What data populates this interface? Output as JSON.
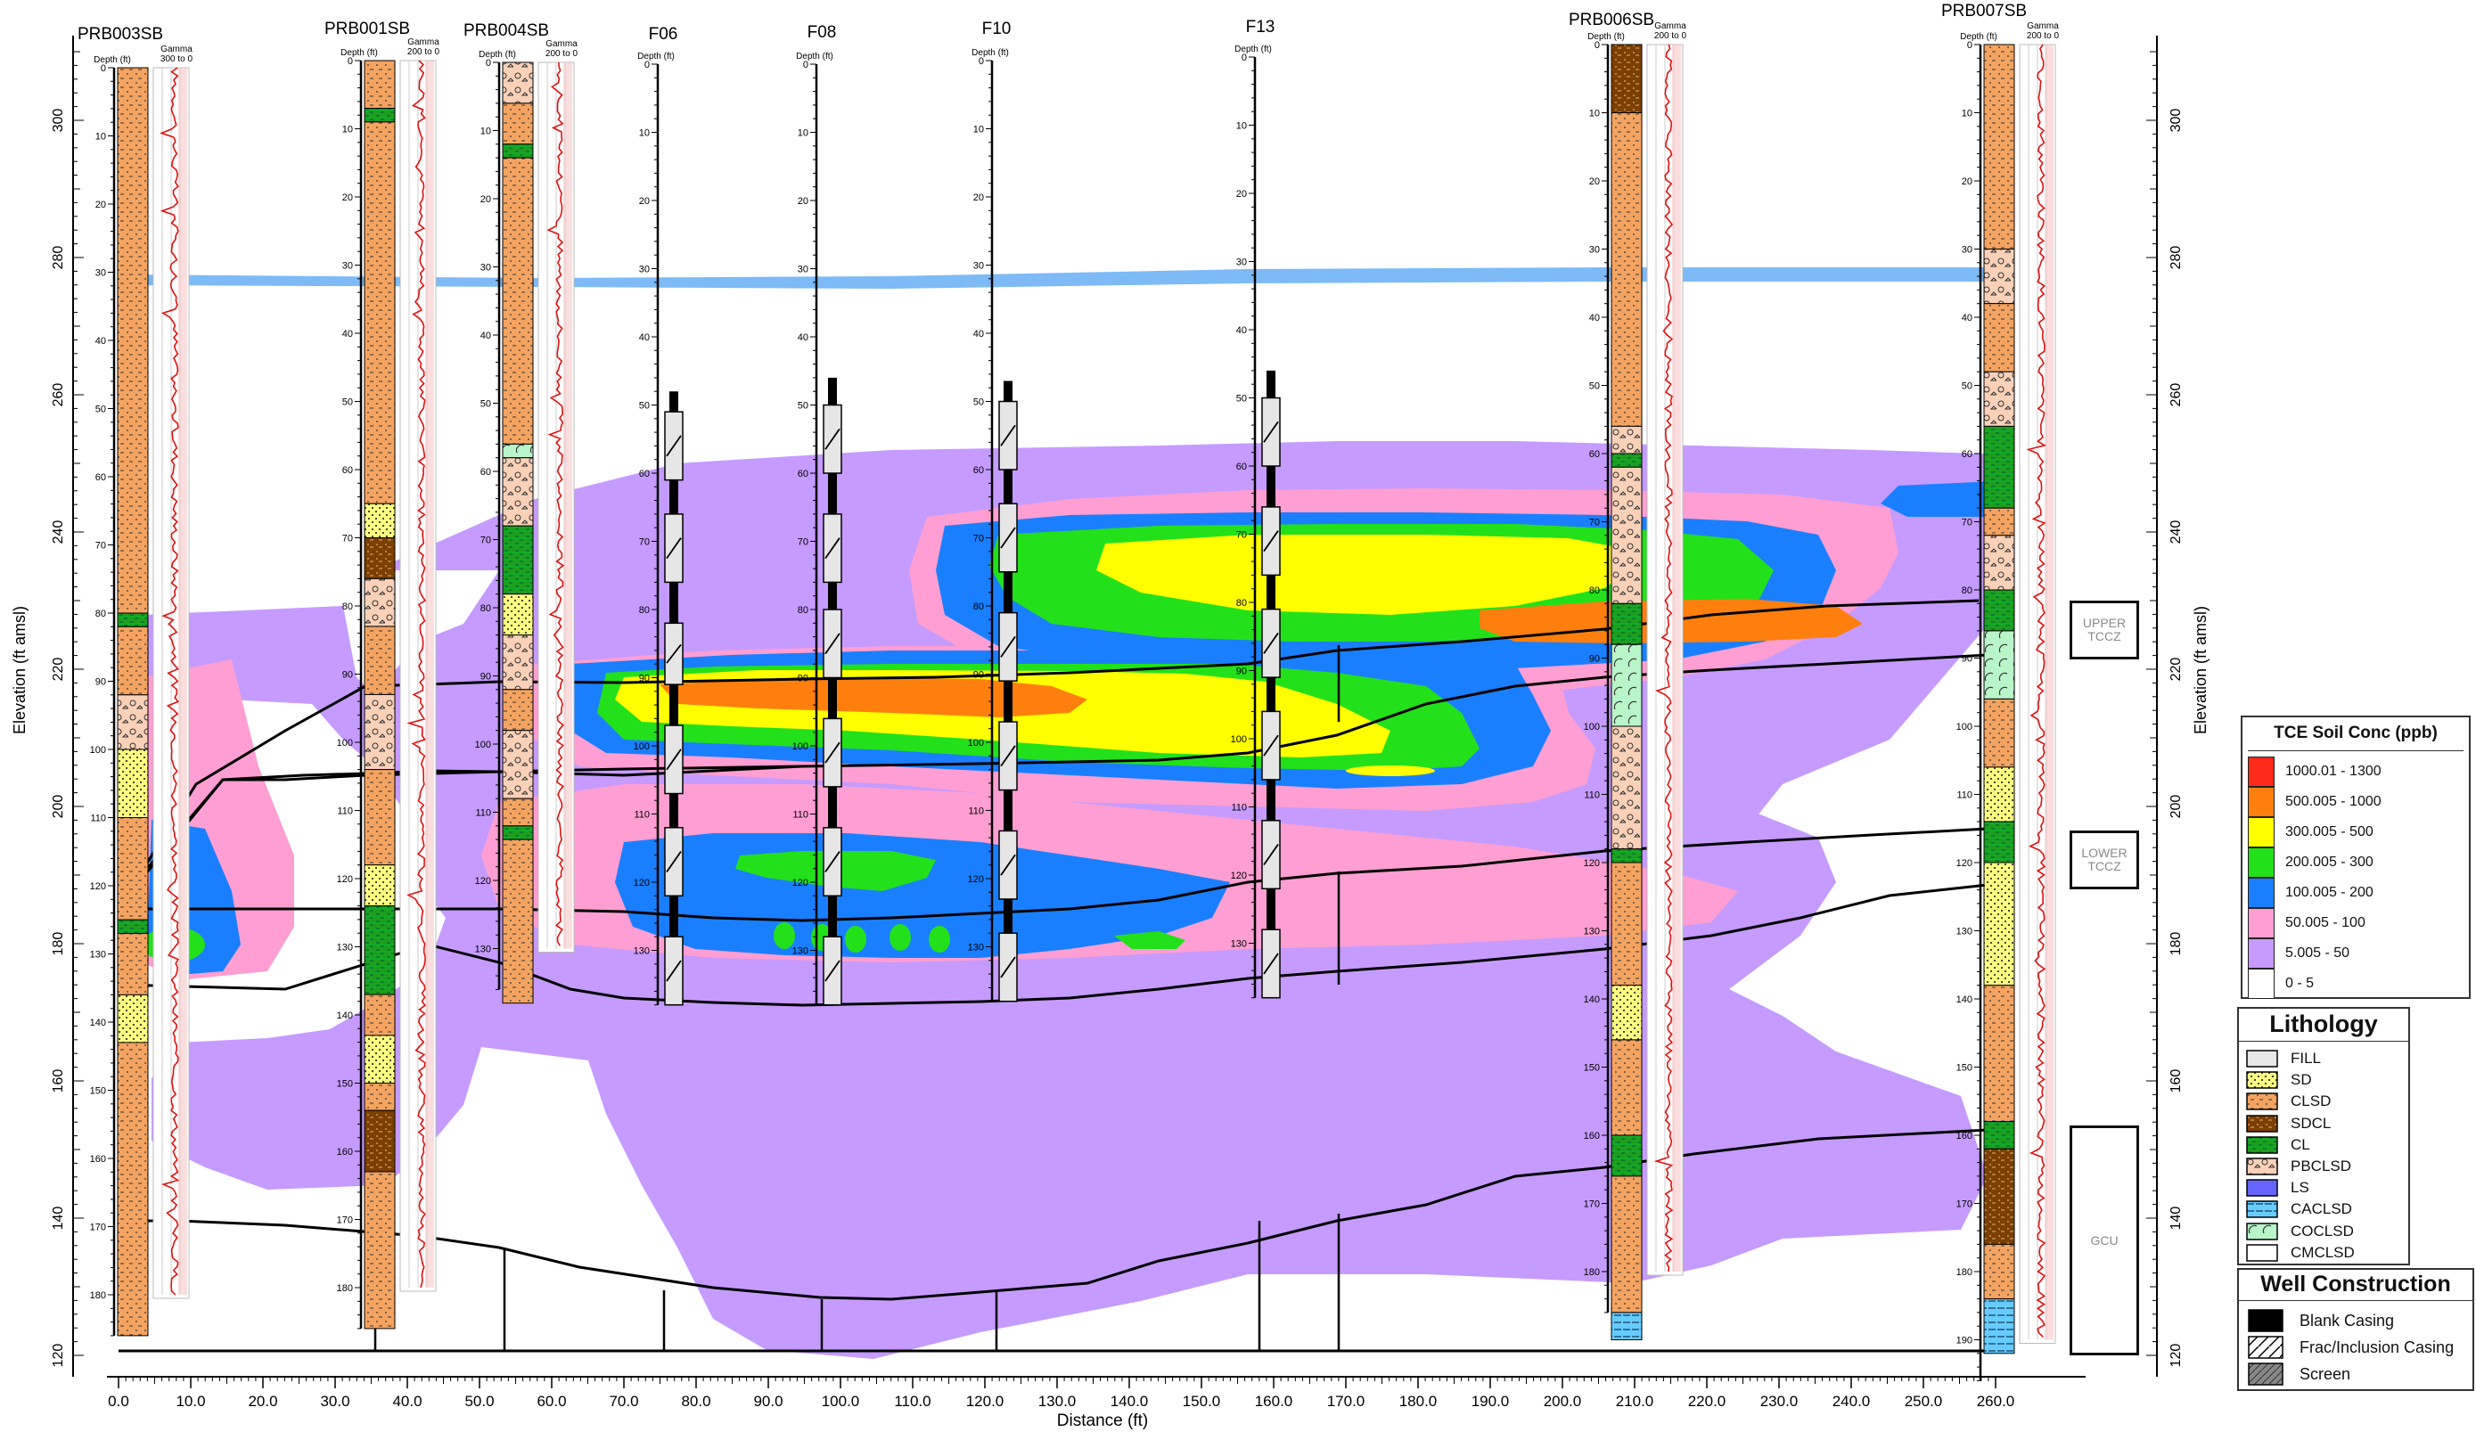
{
  "chart_data": {
    "type": "diagram",
    "xlabel": "Distance (ft)",
    "ylabel_left": "Elevation (ft amsl)",
    "ylabel_right": "Elevation (ft amsl)",
    "x_ticks": [
      "0.0",
      "10.0",
      "20.0",
      "30.0",
      "40.0",
      "50.0",
      "60.0",
      "70.0",
      "80.0",
      "90.0",
      "100.0",
      "110.0",
      "120.0",
      "130.0",
      "140.0",
      "150.0",
      "160.0",
      "170.0",
      "180.0",
      "190.0",
      "200.0",
      "210.0",
      "220.0",
      "230.0",
      "240.0",
      "250.0",
      "260.0"
    ],
    "elev_ticks": [
      "300",
      "280",
      "260",
      "240",
      "220",
      "200",
      "180",
      "160",
      "140",
      "120"
    ],
    "depth_header": "Depth (ft)",
    "boreholes": [
      {
        "name": "PRB003SB",
        "x": 0,
        "gamma_label": "Gamma",
        "gamma_range": "300 to 0",
        "depth_ticks": [
          "0",
          "10",
          "20",
          "30",
          "40",
          "50",
          "60",
          "70",
          "80",
          "90",
          "100",
          "110",
          "120",
          "130",
          "140",
          "150",
          "160",
          "170",
          "180"
        ]
      },
      {
        "name": "PRB001SB",
        "x": 34,
        "gamma_label": "Gamma",
        "gamma_range": "200 to 0",
        "depth_ticks": [
          "0",
          "10",
          "20",
          "30",
          "40",
          "50",
          "60",
          "70",
          "80",
          "90",
          "100",
          "110",
          "120",
          "130",
          "140",
          "150",
          "160",
          "170",
          "180"
        ]
      },
      {
        "name": "PRB004SB",
        "x": 53,
        "gamma_label": "Gamma",
        "gamma_range": "200 to 0",
        "depth_ticks": [
          "0",
          "10",
          "20",
          "30",
          "40",
          "50",
          "60",
          "70",
          "80",
          "90",
          "100",
          "110",
          "120",
          "130"
        ]
      },
      {
        "name": "F06",
        "x": 74,
        "depth_ticks": [
          "0",
          "10",
          "20",
          "30",
          "40",
          "50",
          "60",
          "70",
          "80",
          "90",
          "100",
          "110",
          "120",
          "130"
        ]
      },
      {
        "name": "F08",
        "x": 96,
        "depth_ticks": [
          "0",
          "10",
          "20",
          "30",
          "40",
          "50",
          "60",
          "70",
          "80",
          "90",
          "100",
          "110",
          "120",
          "130"
        ]
      },
      {
        "name": "F10",
        "x": 120,
        "depth_ticks": [
          "0",
          "10",
          "20",
          "30",
          "40",
          "50",
          "60",
          "70",
          "80",
          "90",
          "100",
          "110",
          "120",
          "130"
        ]
      },
      {
        "name": "F13",
        "x": 156,
        "depth_ticks": [
          "0",
          "10",
          "20",
          "30",
          "40",
          "50",
          "60",
          "70",
          "80",
          "90",
          "100",
          "110",
          "120",
          "130"
        ]
      },
      {
        "name": "PRB006SB",
        "x": 204,
        "gamma_label": "Gamma",
        "gamma_range": "200 to 0",
        "depth_ticks": [
          "0",
          "10",
          "20",
          "30",
          "40",
          "50",
          "60",
          "70",
          "80",
          "90",
          "100",
          "110",
          "120",
          "130",
          "140",
          "150",
          "160",
          "170",
          "180"
        ]
      },
      {
        "name": "PRB007SB",
        "x": 255,
        "gamma_label": "Gamma",
        "gamma_range": "200 to 0",
        "depth_ticks": [
          "0",
          "10",
          "20",
          "30",
          "40",
          "50",
          "60",
          "70",
          "80",
          "90",
          "100",
          "110",
          "120",
          "130",
          "140",
          "150",
          "160",
          "170",
          "180",
          "190"
        ]
      }
    ],
    "zones": [
      "UPPER\nTCCZ",
      "LOWER\nTCCZ",
      "GCU"
    ],
    "tce_legend": {
      "title": "TCE Soil Conc (ppb)",
      "classes": [
        {
          "label": "1000.01 - 1300",
          "color": "#ff2a1a"
        },
        {
          "label": "500.005 - 1000",
          "color": "#ff7f0e"
        },
        {
          "label": "300.005 - 500",
          "color": "#ffff00"
        },
        {
          "label": "200.005 - 300",
          "color": "#22e11a"
        },
        {
          "label": "100.005 - 200",
          "color": "#1a7fff"
        },
        {
          "label": "50.005 - 100",
          "color": "#ff9ed2"
        },
        {
          "label": "5.005 - 50",
          "color": "#c59bff"
        },
        {
          "label": "0 - 5",
          "color": "#ffffff"
        }
      ]
    },
    "lithology_legend": {
      "title": "Lithology",
      "items": [
        {
          "label": "FILL",
          "color": "#e8e8e8"
        },
        {
          "label": "SD",
          "color": "#ffff80"
        },
        {
          "label": "CLSD",
          "color": "#f4a460"
        },
        {
          "label": "SDCL",
          "color": "#7b3f00"
        },
        {
          "label": "CL",
          "color": "#1e9e1e"
        },
        {
          "label": "PBCLSD",
          "color": "#f9d0b8"
        },
        {
          "label": "LS",
          "color": "#6666ff"
        },
        {
          "label": "CACLSD",
          "color": "#66ccff"
        },
        {
          "label": "COCLSD",
          "color": "#b8f5c8"
        },
        {
          "label": "CMCLSD",
          "color": "#ffffff"
        }
      ]
    },
    "well_legend": {
      "title": "Well Construction",
      "items": [
        {
          "label": "Blank Casing",
          "color": "#000000"
        },
        {
          "label": "Frac/Inclusion Casing",
          "color": "#ffffff"
        },
        {
          "label": "Screen",
          "color": "#888888"
        }
      ]
    }
  }
}
